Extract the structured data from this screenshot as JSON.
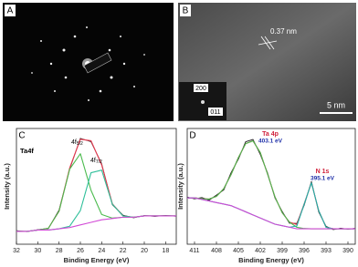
{
  "images": [
    {
      "label": "A"
    },
    {
      "label": "B",
      "annotations": [
        "0.37 nm",
        "5 nm",
        "200",
        "011"
      ]
    }
  ],
  "chart_data": [
    {
      "type": "line",
      "panel_label": "C",
      "xlabel": "Binding Energy (eV)",
      "ylabel": "Intensity (a.u.)",
      "x": [
        32,
        31,
        30,
        29,
        28,
        27,
        26,
        25,
        24,
        23,
        22,
        21,
        20,
        19,
        18,
        17
      ],
      "xlim": [
        32,
        17
      ],
      "xticks": [
        32,
        30,
        28,
        26,
        24,
        22,
        20,
        18
      ],
      "ylim": [
        0,
        90
      ],
      "series": [
        {
          "color": "#1a1a1a",
          "values": [
            10.5,
            9.8,
            11.3,
            12.2,
            26.5,
            58.6,
            82.3,
            79.8,
            62.4,
            30.8,
            22.5,
            20.6,
            22.3,
            21.7,
            22.4,
            21.8
          ]
        },
        {
          "color": "#e8384f",
          "values": [
            10,
            10,
            11,
            12.5,
            25.7,
            59.4,
            81.6,
            80.5,
            61.7,
            31.5,
            22,
            21,
            22,
            22,
            22,
            22
          ]
        },
        {
          "color": "#4cbb4f",
          "values": [
            10,
            10,
            11,
            12.5,
            25.7,
            58.4,
            70.4,
            41.9,
            23.1,
            20.3,
            21,
            21,
            22,
            22,
            22,
            22
          ]
        },
        {
          "color": "#2fbf9a",
          "values": [
            10,
            10,
            11,
            11,
            12,
            14,
            26.2,
            55.6,
            57.6,
            31.2,
            22,
            21,
            22,
            22,
            22,
            22
          ]
        },
        {
          "color": "#d24ad6",
          "values": [
            10,
            10,
            11,
            11,
            12,
            13,
            15,
            17,
            19,
            20,
            21,
            21,
            22,
            22,
            22,
            22
          ]
        }
      ],
      "annotations": [
        {
          "text": "Ta4f"
        },
        {
          "text": "4f",
          "sub": "5/2"
        },
        {
          "text": "4f",
          "sub": "7/2"
        }
      ]
    },
    {
      "type": "line",
      "panel_label": "D",
      "xlabel": "Binding Energy (eV)",
      "ylabel": "Intensity (a.u.)",
      "x": [
        412,
        411,
        410,
        409,
        408,
        407,
        406,
        405,
        404,
        403,
        402,
        401,
        400,
        399,
        398,
        397,
        396,
        395,
        394,
        393,
        392,
        391,
        390,
        389
      ],
      "xlim": [
        412,
        389
      ],
      "xticks": [
        411,
        408,
        405,
        402,
        399,
        396,
        393,
        390
      ],
      "ylim": [
        0,
        75
      ],
      "series": [
        {
          "color": "#1a1a1a",
          "values": [
            30.5,
            29.4,
            30.2,
            28.6,
            31.8,
            35.2,
            46.3,
            55.1,
            66.4,
            67.9,
            58.2,
            46.1,
            30.1,
            21.2,
            13.6,
            13.5,
            25.2,
            40.6,
            20.9,
            11.6,
            9.5,
            10.4,
            9.8,
            10.3
          ]
        },
        {
          "color": "#e8384f",
          "values": [
            30,
            30.1,
            29.4,
            29.3,
            31,
            36,
            45.1,
            56.1,
            65.2,
            67,
            59.4,
            45.4,
            30.8,
            20.4,
            14.3,
            12.8,
            26.1,
            39.8,
            21.7,
            11,
            10,
            10,
            10,
            10
          ]
        },
        {
          "color": "#4cbb4f",
          "values": [
            30,
            30.1,
            29.4,
            29.3,
            31,
            36,
            45.1,
            56.1,
            65.2,
            67,
            59.4,
            45.4,
            30.8,
            20.4,
            14.3,
            11,
            10.2,
            10,
            10,
            10,
            10,
            10,
            10,
            10
          ]
        },
        {
          "color": "#20b2aa",
          "values": [
            30,
            30,
            29,
            28,
            27,
            26,
            25,
            23,
            21,
            19,
            17,
            15,
            13,
            12,
            11,
            11.8,
            25.9,
            39.8,
            21.7,
            11,
            10,
            10,
            10,
            10
          ]
        },
        {
          "color": "#d24ad6",
          "values": [
            30,
            30,
            29,
            28,
            27,
            26,
            25,
            23,
            21,
            19,
            17,
            15,
            13,
            12,
            11,
            10,
            10,
            10,
            10,
            10,
            10,
            10,
            10,
            10
          ]
        }
      ],
      "annotations": [
        {
          "text": "Ta 4p"
        },
        {
          "text": "403.1 eV"
        },
        {
          "text": "N 1s"
        },
        {
          "text": "395.1 eV"
        }
      ]
    }
  ]
}
